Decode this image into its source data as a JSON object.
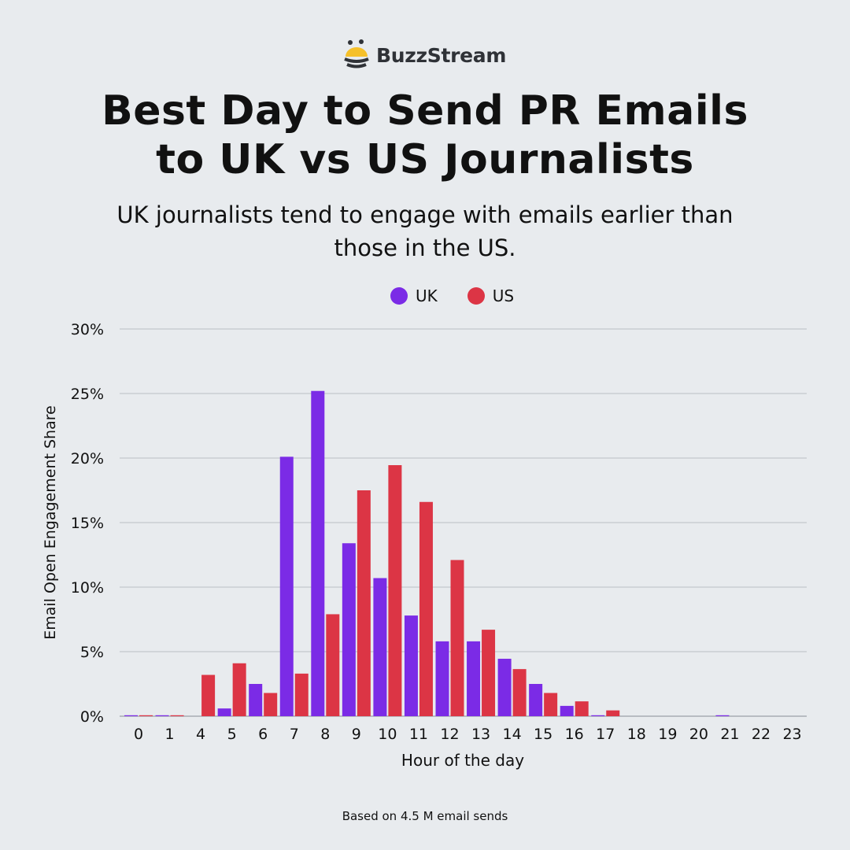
{
  "brand": {
    "name": "BuzzStream",
    "logo_colors": {
      "top": "#f5c02a",
      "stripes": "#2f3237"
    }
  },
  "title_lines": [
    "Best Day to Send PR Emails",
    "to UK vs US Journalists"
  ],
  "subtitle_lines": [
    "UK journalists tend to engage with emails earlier than",
    "those in the US."
  ],
  "footer": "Based on 4.5 M email sends",
  "chart_data": {
    "type": "bar",
    "title": "Best Day to Send PR Emails to UK vs US Journalists",
    "xlabel": "Hour of the day",
    "ylabel": "Email Open Engagement Share",
    "ylim": [
      0,
      30
    ],
    "yticks": [
      "0%",
      "5%",
      "10%",
      "15%",
      "20%",
      "25%",
      "30%"
    ],
    "ytick_values": [
      0,
      5,
      10,
      15,
      20,
      25,
      30
    ],
    "grid": true,
    "legend_position": "top-center",
    "categories": [
      "0",
      "1",
      "4",
      "5",
      "6",
      "7",
      "8",
      "9",
      "10",
      "11",
      "12",
      "13",
      "14",
      "15",
      "16",
      "17",
      "18",
      "19",
      "20",
      "21",
      "22",
      "23"
    ],
    "series": [
      {
        "name": "UK",
        "color": "#7b2be6",
        "values": [
          0.05,
          0.05,
          0,
          0.6,
          2.5,
          20.1,
          25.2,
          13.4,
          10.7,
          7.8,
          5.8,
          5.8,
          4.45,
          2.5,
          0.8,
          0.05,
          0,
          0,
          0,
          0.05,
          0,
          0
        ]
      },
      {
        "name": "US",
        "color": "#dc3545",
        "values": [
          0.05,
          0.05,
          3.2,
          4.1,
          1.8,
          3.3,
          7.9,
          17.5,
          19.45,
          16.6,
          12.1,
          6.7,
          3.65,
          1.8,
          1.15,
          0.45,
          0,
          0,
          0,
          0,
          0,
          0
        ]
      }
    ]
  }
}
